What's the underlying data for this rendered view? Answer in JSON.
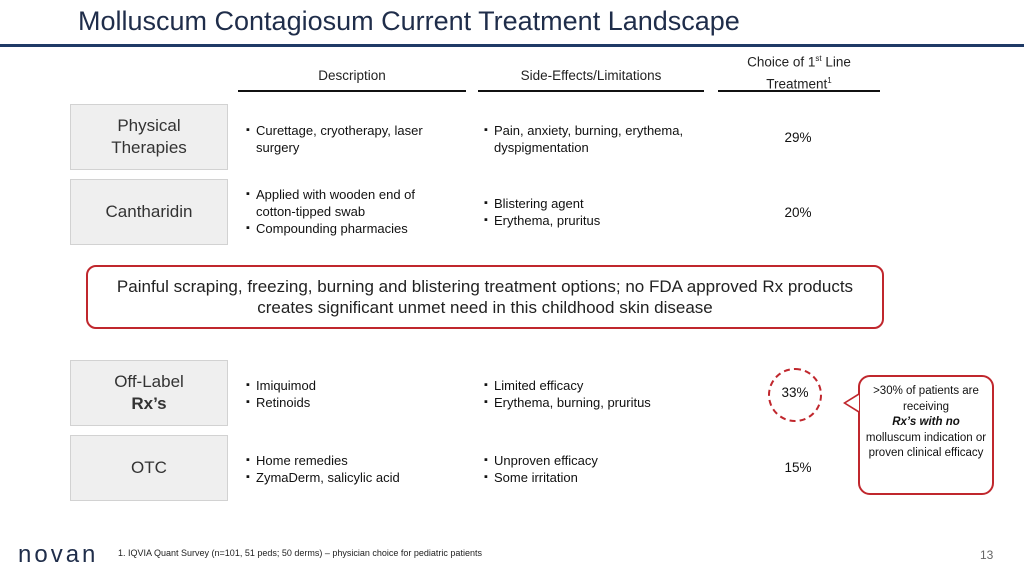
{
  "slide": {
    "title": "Molluscum Contagiosum Current Treatment Landscape",
    "page_number": "13"
  },
  "columns": {
    "description": "Description",
    "side_effects": "Side-Effects/Limitations",
    "choice_line1": "Choice of 1",
    "choice_sup": "st",
    "choice_line1_end": " Line",
    "choice_line2": "Treatment",
    "choice_footref": "1"
  },
  "rows": {
    "physical": {
      "label_line1": "Physical",
      "label_line2": "Therapies",
      "description": [
        "Curettage, cryotherapy, laser surgery"
      ],
      "side_effects": [
        "Pain, anxiety, burning, erythema, dyspigmentation"
      ],
      "choice": "29%"
    },
    "cantharidin": {
      "label": "Cantharidin",
      "description": [
        "Applied with wooden end of cotton-tipped swab",
        "Compounding pharmacies"
      ],
      "side_effects": [
        "Blistering agent",
        "Erythema, pruritus"
      ],
      "choice": "20%"
    },
    "offlabel": {
      "label_line1": "Off-Label",
      "label_line2": "Rx’s",
      "description": [
        "Imiquimod",
        "Retinoids"
      ],
      "side_effects": [
        "Limited efficacy",
        "Erythema, burning, pruritus"
      ],
      "choice": "33%"
    },
    "otc": {
      "label": "OTC",
      "description": [
        "Home remedies",
        "ZymaDerm, salicylic acid"
      ],
      "side_effects": [
        "Unproven efficacy",
        "Some irritation"
      ],
      "choice": "15%"
    }
  },
  "callout": {
    "text": "Painful scraping, freezing, burning and blistering treatment options; no FDA approved Rx products creates significant unmet need in this childhood skin disease"
  },
  "note": {
    "part1": ">30% of patients are receiving",
    "part2": "Rx’s with no",
    "part3": "molluscum indication or proven clinical efficacy"
  },
  "footer": {
    "logo": "novan",
    "footnote": "1. IQVIA Quant Survey (n=101, 51 peds; 50 derms) – physician choice for pediatric patients"
  },
  "colors": {
    "title": "#1f2d4a",
    "title_rule": "#1f3a66",
    "accent_red": "#c0272d",
    "row_fill": "#efefef"
  }
}
